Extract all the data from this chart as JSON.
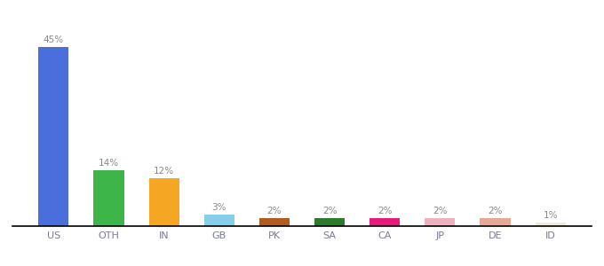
{
  "categories": [
    "US",
    "OTH",
    "IN",
    "GB",
    "PK",
    "SA",
    "CA",
    "JP",
    "DE",
    "ID"
  ],
  "values": [
    45,
    14,
    12,
    3,
    2,
    2,
    2,
    2,
    2,
    1
  ],
  "bar_colors": [
    "#4a6fdc",
    "#3db549",
    "#f5a623",
    "#87ceeb",
    "#b35a1f",
    "#2d7a2d",
    "#e8197a",
    "#f0b0c0",
    "#e8a898",
    "#f0ecd0"
  ],
  "labels": [
    "45%",
    "14%",
    "12%",
    "3%",
    "2%",
    "2%",
    "2%",
    "2%",
    "2%",
    "1%"
  ],
  "ylim": [
    0,
    50
  ],
  "label_color": "#888888",
  "tick_color": "#7a7a9a",
  "background_color": "#ffffff",
  "bar_width": 0.55
}
